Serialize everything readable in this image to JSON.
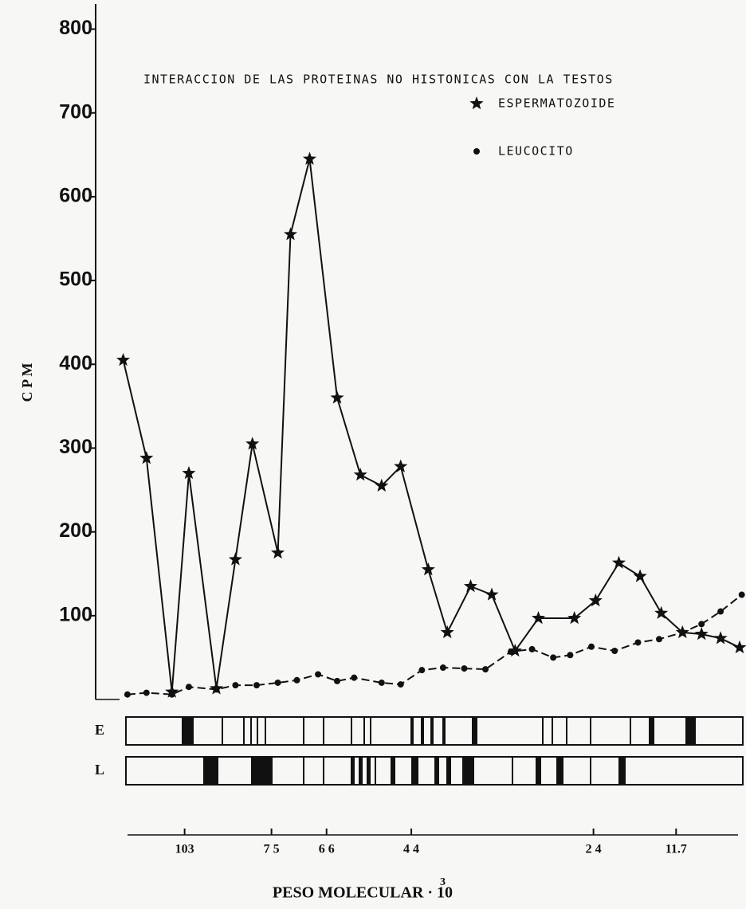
{
  "chart_data": {
    "type": "line",
    "title": "INTERACCION DE LAS PROTEINAS NO HISTONICAS CON LA TESTOS",
    "ylabel": "C P M",
    "xlabel": "PESO MOLECULAR · 10",
    "xlabel_exponent": "3",
    "xlim": [
      -0.4,
      30.3
    ],
    "ylim": [
      0,
      830
    ],
    "yticks": [
      100,
      200,
      300,
      400,
      500,
      600,
      700,
      800
    ],
    "mw_ticks": [
      {
        "value": 3.8,
        "label": "103"
      },
      {
        "value": 7.9,
        "label": "7 5"
      },
      {
        "value": 10.5,
        "label": "6 6"
      },
      {
        "value": 14.5,
        "label": "4 4"
      },
      {
        "value": 23.1,
        "label": "2 4"
      },
      {
        "value": 27.0,
        "label": "11.7"
      }
    ],
    "gels": [
      {
        "label": "E"
      },
      {
        "label": "L"
      }
    ],
    "series": [
      {
        "name": "ESPERMATOZOIDE",
        "marker": "star",
        "dashed": false,
        "color": "#111111",
        "x": [
          0.9,
          2.0,
          3.2,
          4.0,
          5.3,
          6.2,
          7.0,
          8.2,
          8.8,
          9.7,
          11.0,
          12.1,
          13.1,
          14.0,
          15.3,
          16.2,
          17.3,
          18.3,
          19.4,
          20.5,
          22.2,
          23.2,
          24.3,
          25.3,
          26.3,
          27.3,
          28.2,
          29.1,
          30.0
        ],
        "values": [
          405,
          288,
          9,
          270,
          13,
          167,
          305,
          175,
          555,
          645,
          360,
          268,
          255,
          278,
          155,
          80,
          135,
          125,
          58,
          97,
          97,
          118,
          163,
          147,
          103,
          80,
          78,
          73,
          62
        ]
      },
      {
        "name": "LEUCOCITO",
        "marker": "dot",
        "dashed": true,
        "color": "#111111",
        "x": [
          1.1,
          2.0,
          3.2,
          4.0,
          5.3,
          6.2,
          7.2,
          8.2,
          9.1,
          10.1,
          11.0,
          11.8,
          13.1,
          14.0,
          15.0,
          16.0,
          17.0,
          18.0,
          19.2,
          20.2,
          21.2,
          22.0,
          23.0,
          24.1,
          25.2,
          26.2,
          27.3,
          28.2,
          29.1,
          30.1
        ],
        "values": [
          6,
          8,
          6,
          15,
          12,
          17,
          17,
          20,
          23,
          30,
          22,
          26,
          20,
          18,
          35,
          38,
          37,
          36,
          57,
          60,
          50,
          53,
          63,
          58,
          68,
          72,
          80,
          90,
          105,
          125
        ]
      }
    ]
  }
}
